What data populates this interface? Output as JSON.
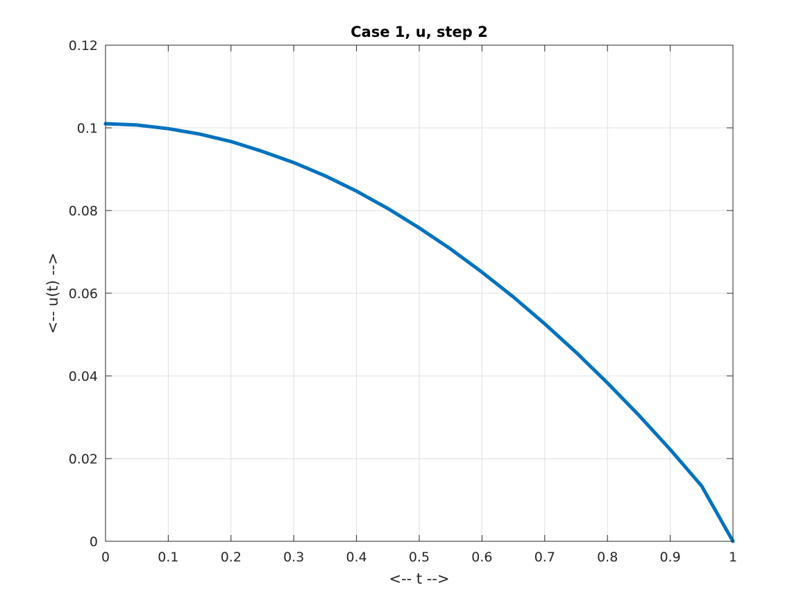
{
  "chart_data": {
    "type": "line",
    "title": "Case 1, u, step 2",
    "xlabel": "<-- t -->",
    "ylabel": "<-- u(t) -->",
    "xlim": [
      0,
      1
    ],
    "ylim": [
      0,
      0.12
    ],
    "xticks": [
      0,
      0.1,
      0.2,
      0.3,
      0.4,
      0.5,
      0.6,
      0.7,
      0.8,
      0.9,
      1
    ],
    "xtick_labels": [
      "0",
      "0.1",
      "0.2",
      "0.3",
      "0.4",
      "0.5",
      "0.6",
      "0.7",
      "0.8",
      "0.9",
      "1"
    ],
    "yticks": [
      0,
      0.02,
      0.04,
      0.06,
      0.08,
      0.1,
      0.12
    ],
    "ytick_labels": [
      "0",
      "0.02",
      "0.04",
      "0.06",
      "0.08",
      "0.1",
      "0.12"
    ],
    "grid": true,
    "series": [
      {
        "color": "#0072bd",
        "x": [
          0,
          0.05,
          0.1,
          0.15,
          0.2,
          0.25,
          0.3,
          0.35,
          0.4,
          0.45,
          0.5,
          0.55,
          0.6,
          0.65,
          0.7,
          0.75,
          0.8,
          0.85,
          0.9,
          0.95,
          1
        ],
        "y": [
          0.101,
          0.1007,
          0.0998,
          0.0985,
          0.0967,
          0.0943,
          0.0916,
          0.0884,
          0.0847,
          0.0805,
          0.0758,
          0.0707,
          0.0651,
          0.0591,
          0.0526,
          0.0457,
          0.0383,
          0.0305,
          0.0222,
          0.0134,
          0.0
        ]
      }
    ]
  }
}
